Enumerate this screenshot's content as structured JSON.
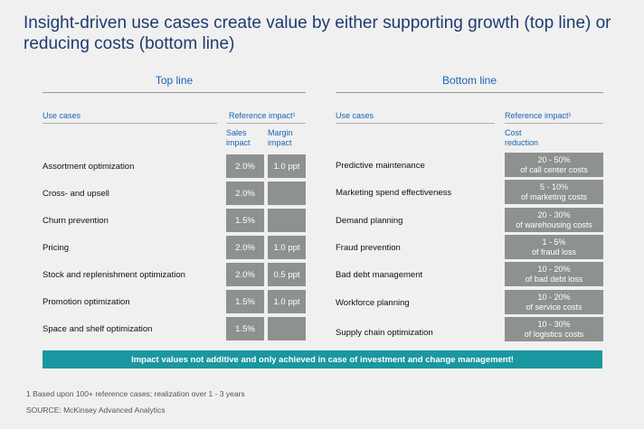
{
  "title": "Insight-driven use cases create value by either supporting growth (top line) or reducing costs (bottom line)",
  "top_line": {
    "title": "Top line",
    "header_use_cases": "Use cases",
    "header_impact": "Reference impact¹",
    "sub_sales_1": "Sales",
    "sub_sales_2": "impact",
    "sub_margin_1": "Margin",
    "sub_margin_2": "impact",
    "rows": [
      {
        "label": "Assortment optimization",
        "sales": "2.0%",
        "margin": "1.0 ppt"
      },
      {
        "label": "Cross- and upsell",
        "sales": "2.0%",
        "margin": ""
      },
      {
        "label": "Churn prevention",
        "sales": "1.5%",
        "margin": ""
      },
      {
        "label": "Pricing",
        "sales": "2.0%",
        "margin": "1.0 ppt"
      },
      {
        "label": "Stock and replenishment optimization",
        "sales": "2.0%",
        "margin": "0.5 ppt"
      },
      {
        "label": "Promotion optimization",
        "sales": "1.5%",
        "margin": "1.0 ppt"
      },
      {
        "label": "Space and shelf optimization",
        "sales": "1.5%",
        "margin": ""
      }
    ]
  },
  "bottom_line": {
    "title": "Bottom line",
    "header_use_cases": "Use cases",
    "header_impact": "Reference impact¹",
    "sub_cost_1": "Cost",
    "sub_cost_2": "reduction",
    "rows": [
      {
        "label": "Predictive maintenance",
        "value": "20 - 50%",
        "detail": "of call center costs"
      },
      {
        "label": "Marketing spend effectiveness",
        "value": "5 - 10%",
        "detail": "of marketing costs"
      },
      {
        "label": "Demand planning",
        "value": "20 - 30%",
        "detail": "of warehousing costs"
      },
      {
        "label": "Fraud prevention",
        "value": "1 - 5%",
        "detail": "of fraud loss"
      },
      {
        "label": "Bad debt management",
        "value": "10 - 20%",
        "detail": "of bad debt loss"
      },
      {
        "label": "Workforce planning",
        "value": "10 - 20%",
        "detail": "of service costs"
      },
      {
        "label": "Supply chain optimization",
        "value": "10 - 30%",
        "detail": "of logistics costs"
      }
    ]
  },
  "banner": "Impact values not additive and only achieved in case of investment and change management!",
  "footnote": "1 Based upon 100+ reference cases; realization over 1 - 3 years",
  "source": "SOURCE: McKinsey Advanced Analytics",
  "colors": {
    "title": "#1f3b70",
    "accent": "#1b63b3",
    "box": "#8d9190",
    "banner": "#1a97a0"
  }
}
